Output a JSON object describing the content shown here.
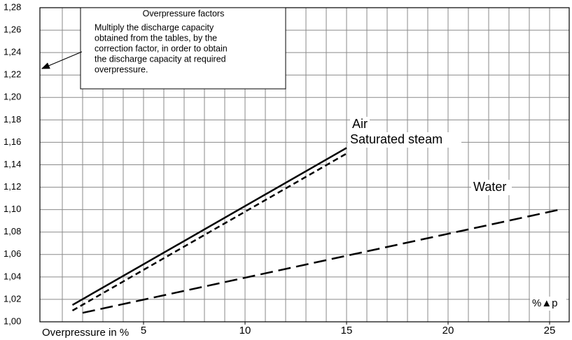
{
  "chart_data": {
    "type": "line",
    "xlabel": "Overpressure in %",
    "annotation_title": "Overpressure factors",
    "annotation_lines": [
      "Multiply the discharge capacity",
      "obtained from the tables, by the",
      "correction factor, in order to obtain",
      "the discharge capacity at required",
      "overpressure."
    ],
    "axis_symbol": "%▲p",
    "xlim": [
      0,
      26
    ],
    "ylim": [
      1.0,
      1.28
    ],
    "xticks": [
      5,
      10,
      15,
      20,
      25
    ],
    "x_minor_ticks": [
      1,
      2,
      3,
      4,
      5,
      6,
      7,
      8,
      9,
      10,
      11,
      12,
      13,
      14,
      15,
      16,
      17,
      18,
      19,
      20,
      21,
      22,
      23,
      24,
      25
    ],
    "yticks": [
      {
        "value": 1.0,
        "label": "1,00"
      },
      {
        "value": 1.02,
        "label": "1,02"
      },
      {
        "value": 1.04,
        "label": "1,04"
      },
      {
        "value": 1.06,
        "label": "1,06"
      },
      {
        "value": 1.08,
        "label": "1,08"
      },
      {
        "value": 1.1,
        "label": "1,10"
      },
      {
        "value": 1.12,
        "label": "1,12"
      },
      {
        "value": 1.14,
        "label": "1,14"
      },
      {
        "value": 1.16,
        "label": "1,16"
      },
      {
        "value": 1.18,
        "label": "1,18"
      },
      {
        "value": 1.2,
        "label": "1,20"
      },
      {
        "value": 1.22,
        "label": "1,22"
      },
      {
        "value": 1.24,
        "label": "1,24"
      },
      {
        "value": 1.26,
        "label": "1,26"
      },
      {
        "value": 1.28,
        "label": "1,28"
      }
    ],
    "grid": true,
    "series": [
      {
        "name": "Air",
        "color": "#000000",
        "dash": "solid",
        "x": [
          1.5,
          15
        ],
        "values": [
          1.015,
          1.155
        ]
      },
      {
        "name": "Saturated steam",
        "color": "#000000",
        "dash": "short",
        "x": [
          1.5,
          15
        ],
        "values": [
          1.01,
          1.15
        ]
      },
      {
        "name": "Water",
        "color": "#000000",
        "dash": "long",
        "x": [
          2,
          25.5
        ],
        "values": [
          1.008,
          1.1
        ]
      }
    ]
  }
}
